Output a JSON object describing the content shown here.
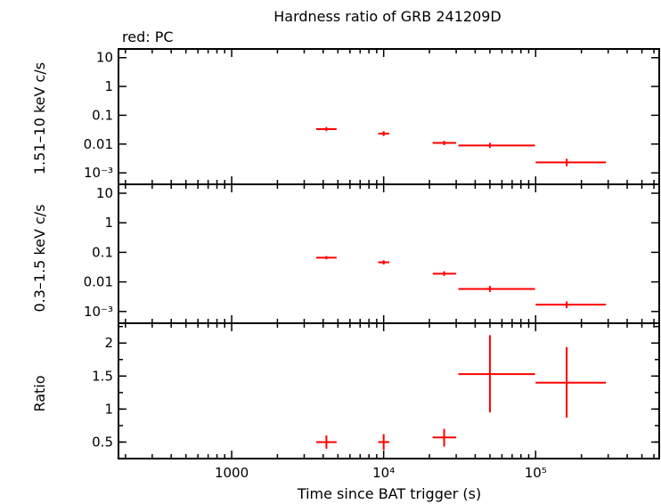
{
  "title": "Hardness ratio of GRB 241209D",
  "legend_text": "red: PC",
  "colors": {
    "data": "#ff0000",
    "axes": "#000000"
  },
  "chart_data": [
    {
      "type": "scatter",
      "panel": "top",
      "ylabel": "1.51–10 keV c/s",
      "yscale": "log",
      "ylim": [
        0.0004,
        20
      ],
      "yticks": [
        {
          "v": 10,
          "label": "10"
        },
        {
          "v": 1,
          "label": "1"
        },
        {
          "v": 0.1,
          "label": "0.1"
        },
        {
          "v": 0.01,
          "label": "0.01"
        },
        {
          "v": 0.001,
          "label": "10⁻³"
        }
      ],
      "series": [
        {
          "color": "#ff0000",
          "points": [
            {
              "x": 4200,
              "xlo": 3600,
              "xhi": 4900,
              "y": 0.033,
              "ylo": 0.028,
              "yhi": 0.039
            },
            {
              "x": 10000,
              "xlo": 9200,
              "xhi": 10900,
              "y": 0.023,
              "ylo": 0.019,
              "yhi": 0.028
            },
            {
              "x": 25000,
              "xlo": 21000,
              "xhi": 30000,
              "y": 0.011,
              "ylo": 0.0092,
              "yhi": 0.013
            },
            {
              "x": 50000,
              "xlo": 31000,
              "xhi": 99000,
              "y": 0.0089,
              "ylo": 0.0073,
              "yhi": 0.011
            },
            {
              "x": 160000,
              "xlo": 100000,
              "xhi": 290000,
              "y": 0.0023,
              "ylo": 0.0017,
              "yhi": 0.0031
            }
          ]
        }
      ]
    },
    {
      "type": "scatter",
      "panel": "middle",
      "ylabel": "0.3–1.5 keV c/s",
      "yscale": "log",
      "ylim": [
        0.0004,
        20
      ],
      "yticks": [
        {
          "v": 10,
          "label": "10"
        },
        {
          "v": 1,
          "label": "1"
        },
        {
          "v": 0.1,
          "label": "0.1"
        },
        {
          "v": 0.01,
          "label": "0.01"
        },
        {
          "v": 0.001,
          "label": "10⁻³"
        }
      ],
      "series": [
        {
          "color": "#ff0000",
          "points": [
            {
              "x": 4200,
              "xlo": 3600,
              "xhi": 4900,
              "y": 0.066,
              "ylo": 0.058,
              "yhi": 0.075
            },
            {
              "x": 10000,
              "xlo": 9200,
              "xhi": 10900,
              "y": 0.046,
              "ylo": 0.039,
              "yhi": 0.054
            },
            {
              "x": 25000,
              "xlo": 21000,
              "xhi": 30000,
              "y": 0.019,
              "ylo": 0.016,
              "yhi": 0.023
            },
            {
              "x": 50000,
              "xlo": 31000,
              "xhi": 99000,
              "y": 0.0058,
              "ylo": 0.0046,
              "yhi": 0.0073
            },
            {
              "x": 160000,
              "xlo": 100000,
              "xhi": 290000,
              "y": 0.0017,
              "ylo": 0.0013,
              "yhi": 0.0022
            }
          ]
        }
      ]
    },
    {
      "type": "scatter",
      "panel": "bottom",
      "ylabel": "Ratio",
      "yscale": "linear",
      "ylim": [
        0.25,
        2.3
      ],
      "yticks": [
        {
          "v": 2,
          "label": "2"
        },
        {
          "v": 1.5,
          "label": "1.5"
        },
        {
          "v": 1,
          "label": "1"
        },
        {
          "v": 0.5,
          "label": "0.5"
        }
      ],
      "xlabel": "Time since BAT trigger (s)",
      "xscale": "log",
      "xlim": [
        180,
        650000
      ],
      "xticks": [
        {
          "v": 1000,
          "label": "1000"
        },
        {
          "v": 10000,
          "label": "10⁴"
        },
        {
          "v": 100000,
          "label": "10⁵"
        }
      ],
      "series": [
        {
          "color": "#ff0000",
          "points": [
            {
              "x": 4200,
              "xlo": 3600,
              "xhi": 4900,
              "y": 0.5,
              "ylo": 0.4,
              "yhi": 0.6
            },
            {
              "x": 10000,
              "xlo": 9200,
              "xhi": 10900,
              "y": 0.5,
              "ylo": 0.38,
              "yhi": 0.62
            },
            {
              "x": 25000,
              "xlo": 21000,
              "xhi": 30000,
              "y": 0.57,
              "ylo": 0.43,
              "yhi": 0.7
            },
            {
              "x": 50000,
              "xlo": 31000,
              "xhi": 99000,
              "y": 1.53,
              "ylo": 0.95,
              "yhi": 2.12
            },
            {
              "x": 160000,
              "xlo": 100000,
              "xhi": 290000,
              "y": 1.4,
              "ylo": 0.87,
              "yhi": 1.94
            }
          ]
        }
      ]
    }
  ]
}
